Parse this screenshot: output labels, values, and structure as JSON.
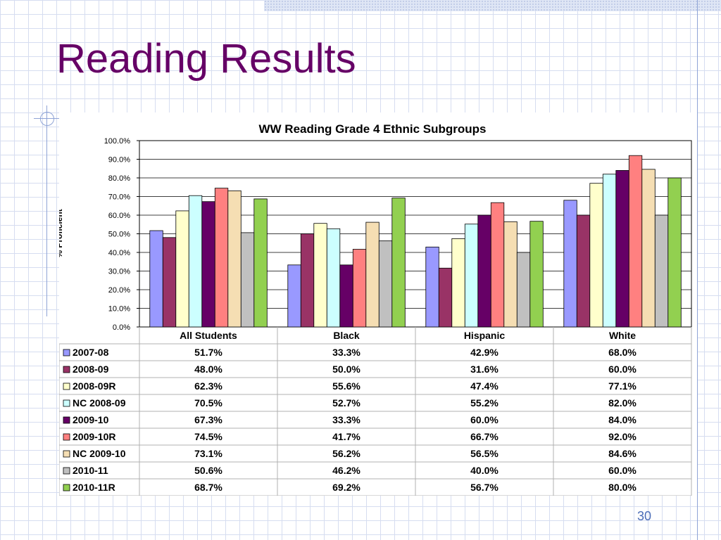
{
  "slide": {
    "title": "Reading Results",
    "page_number": "30"
  },
  "chart_data": {
    "type": "bar",
    "title": "WW Reading Grade 4 Ethnic Subgroups",
    "ylabel": "% Proficient",
    "xlabel": "",
    "ylim": [
      0,
      100
    ],
    "yticks": [
      "0.0%",
      "10.0%",
      "20.0%",
      "30.0%",
      "40.0%",
      "50.0%",
      "60.0%",
      "70.0%",
      "80.0%",
      "90.0%",
      "100.0%"
    ],
    "grid": true,
    "legend": "data-table",
    "categories": [
      "All Students",
      "Black",
      "Hispanic",
      "White"
    ],
    "series": [
      {
        "name": "2007-08",
        "color": "#9999ff",
        "values": [
          51.7,
          33.3,
          42.9,
          68.0
        ],
        "labels": [
          "51.7%",
          "33.3%",
          "42.9%",
          "68.0%"
        ]
      },
      {
        "name": "2008-09",
        "color": "#993366",
        "values": [
          48.0,
          50.0,
          31.6,
          60.0
        ],
        "labels": [
          "48.0%",
          "50.0%",
          "31.6%",
          "60.0%"
        ]
      },
      {
        "name": "2008-09R",
        "color": "#ffffcc",
        "values": [
          62.3,
          55.6,
          47.4,
          77.1
        ],
        "labels": [
          "62.3%",
          "55.6%",
          "47.4%",
          "77.1%"
        ]
      },
      {
        "name": "NC 2008-09",
        "color": "#ccffff",
        "values": [
          70.5,
          52.7,
          55.2,
          82.0
        ],
        "labels": [
          "70.5%",
          "52.7%",
          "55.2%",
          "82.0%"
        ]
      },
      {
        "name": "2009-10",
        "color": "#660066",
        "values": [
          67.3,
          33.3,
          60.0,
          84.0
        ],
        "labels": [
          "67.3%",
          "33.3%",
          "60.0%",
          "84.0%"
        ]
      },
      {
        "name": "2009-10R",
        "color": "#ff8080",
        "values": [
          74.5,
          41.7,
          66.7,
          92.0
        ],
        "labels": [
          "74.5%",
          "41.7%",
          "66.7%",
          "92.0%"
        ]
      },
      {
        "name": "NC 2009-10",
        "color": "#f5deb3",
        "values": [
          73.1,
          56.2,
          56.5,
          84.6
        ],
        "labels": [
          "73.1%",
          "56.2%",
          "56.5%",
          "84.6%"
        ]
      },
      {
        "name": "2010-11",
        "color": "#c0c0c0",
        "values": [
          50.6,
          46.2,
          40.0,
          60.0
        ],
        "labels": [
          "50.6%",
          "46.2%",
          "40.0%",
          "60.0%"
        ]
      },
      {
        "name": "2010-11R",
        "color": "#92d050",
        "values": [
          68.7,
          69.2,
          56.7,
          80.0
        ],
        "labels": [
          "68.7%",
          "69.2%",
          "56.7%",
          "80.0%"
        ]
      }
    ]
  }
}
